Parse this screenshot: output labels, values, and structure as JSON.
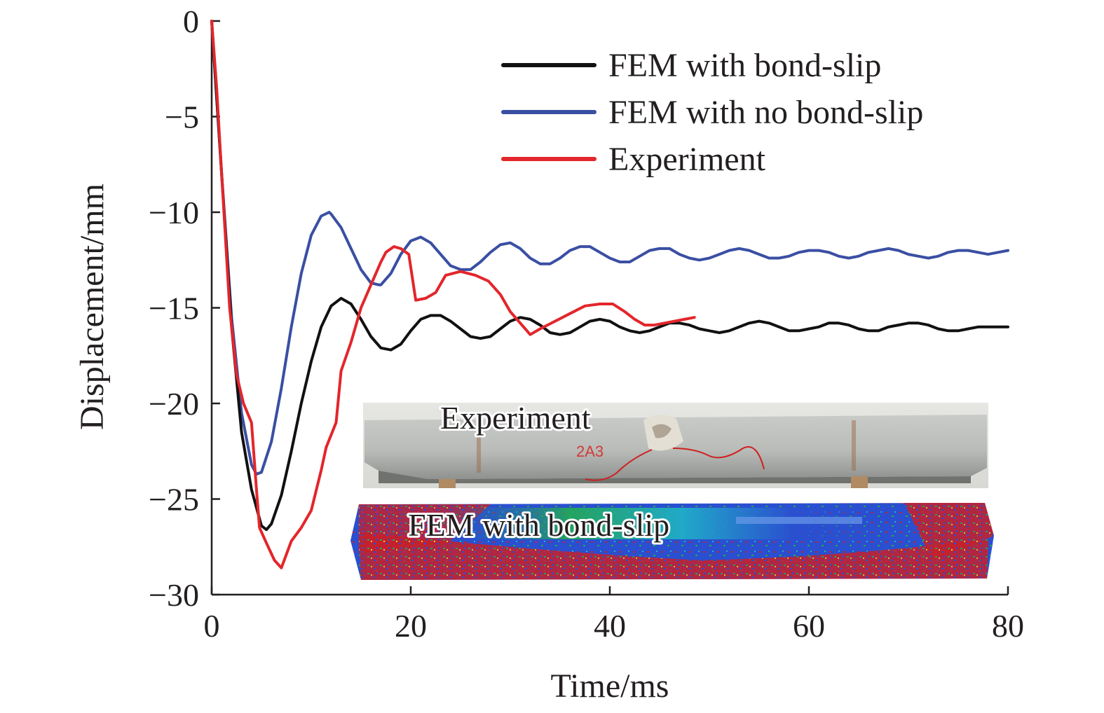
{
  "chart_data": {
    "type": "line",
    "title": "",
    "xlabel": "Time/ms",
    "ylabel": "Displacement/mm",
    "xlim": [
      0,
      80
    ],
    "ylim": [
      -30,
      0
    ],
    "xticks": [
      0,
      20,
      40,
      60,
      80
    ],
    "yticks": [
      0,
      -5,
      -10,
      -15,
      -20,
      -25,
      -30
    ],
    "xtick_labels": [
      "0",
      "20",
      "40",
      "60",
      "80"
    ],
    "ytick_labels": [
      "0",
      "−5",
      "−10",
      "−15",
      "−20",
      "−25",
      "−30"
    ],
    "grid": false,
    "legend": "top-right",
    "series": [
      {
        "name": "FEM with bond-slip",
        "color": "#111111",
        "x": [
          0,
          1,
          2,
          3,
          4,
          5,
          5.5,
          6,
          7,
          8,
          9,
          10,
          11,
          12,
          13,
          14,
          15,
          16,
          17,
          18,
          19,
          20,
          21,
          22,
          23,
          24,
          25,
          26,
          27,
          28,
          29,
          30,
          31,
          32,
          33,
          34,
          35,
          36,
          37,
          38,
          39,
          40,
          41,
          42,
          43,
          44,
          45,
          46,
          47,
          48,
          49,
          50,
          51,
          52,
          53,
          54,
          55,
          56,
          57,
          58,
          59,
          60,
          61,
          62,
          63,
          64,
          65,
          66,
          67,
          68,
          69,
          70,
          71,
          72,
          73,
          74,
          75,
          76,
          77,
          78,
          79,
          80
        ],
        "y": [
          0,
          -8,
          -16,
          -21.5,
          -24.5,
          -26.4,
          -26.6,
          -26.3,
          -24.8,
          -22.5,
          -20.0,
          -17.8,
          -16.0,
          -14.9,
          -14.5,
          -14.8,
          -15.6,
          -16.5,
          -17.1,
          -17.2,
          -16.9,
          -16.2,
          -15.6,
          -15.4,
          -15.4,
          -15.7,
          -16.1,
          -16.5,
          -16.6,
          -16.5,
          -16.1,
          -15.7,
          -15.5,
          -15.6,
          -15.9,
          -16.3,
          -16.4,
          -16.3,
          -16.0,
          -15.7,
          -15.6,
          -15.7,
          -16.0,
          -16.2,
          -16.3,
          -16.2,
          -16.0,
          -15.8,
          -15.8,
          -15.9,
          -16.1,
          -16.2,
          -16.3,
          -16.2,
          -16.0,
          -15.8,
          -15.7,
          -15.8,
          -16.0,
          -16.2,
          -16.2,
          -16.1,
          -16.0,
          -15.8,
          -15.8,
          -15.9,
          -16.1,
          -16.2,
          -16.2,
          -16.0,
          -15.9,
          -15.8,
          -15.8,
          -15.9,
          -16.1,
          -16.2,
          -16.2,
          -16.1,
          -16.0,
          -16.0,
          -16.0,
          -16.0
        ]
      },
      {
        "name": "FEM with no bond-slip",
        "color": "#3a4fa3",
        "x": [
          0,
          1,
          2,
          3,
          4,
          4.5,
          5,
          6,
          7,
          8,
          9,
          10,
          11,
          11.8,
          12,
          13,
          14,
          15,
          16,
          16.8,
          17,
          18,
          19,
          20,
          21,
          22,
          23,
          24,
          25,
          26,
          27,
          28,
          29,
          30,
          31,
          32,
          33,
          34,
          35,
          36,
          37,
          38,
          39,
          40,
          41,
          42,
          43,
          44,
          45,
          46,
          47,
          48,
          49,
          50,
          51,
          52,
          53,
          54,
          55,
          56,
          57,
          58,
          59,
          60,
          61,
          62,
          63,
          64,
          65,
          66,
          67,
          68,
          69,
          70,
          71,
          72,
          73,
          74,
          75,
          76,
          77,
          78,
          79,
          80
        ],
        "y": [
          0,
          -8,
          -15.5,
          -20.5,
          -23.2,
          -23.7,
          -23.6,
          -22.0,
          -19.2,
          -16.0,
          -13.2,
          -11.2,
          -10.2,
          -10.0,
          -10.1,
          -10.8,
          -11.9,
          -13.0,
          -13.7,
          -13.8,
          -13.8,
          -13.2,
          -12.2,
          -11.5,
          -11.3,
          -11.6,
          -12.2,
          -12.8,
          -13.0,
          -13.0,
          -12.6,
          -12.1,
          -11.7,
          -11.6,
          -11.9,
          -12.4,
          -12.7,
          -12.7,
          -12.4,
          -12.0,
          -11.8,
          -11.8,
          -12.1,
          -12.4,
          -12.6,
          -12.6,
          -12.3,
          -12.0,
          -11.9,
          -11.9,
          -12.2,
          -12.4,
          -12.5,
          -12.4,
          -12.2,
          -12.0,
          -11.9,
          -12.0,
          -12.2,
          -12.4,
          -12.4,
          -12.3,
          -12.1,
          -12.0,
          -12.0,
          -12.1,
          -12.3,
          -12.4,
          -12.3,
          -12.1,
          -12.0,
          -11.9,
          -12.0,
          -12.2,
          -12.3,
          -12.4,
          -12.3,
          -12.1,
          -12.0,
          -12.0,
          -12.1,
          -12.2,
          -12.1,
          -12.0
        ]
      },
      {
        "name": "Experiment",
        "color": "#e3262b",
        "x": [
          0,
          0.5,
          1,
          1.8,
          2.5,
          3.2,
          4,
          4.5,
          4.8,
          5.5,
          6.3,
          7,
          8,
          9,
          10,
          11,
          11.5,
          12.5,
          13,
          14,
          15,
          16,
          17,
          17.5,
          18.3,
          19,
          19.8,
          20.5,
          21.5,
          22.5,
          23.5,
          25,
          26.5,
          27.8,
          29,
          30,
          31,
          32,
          33,
          34.5,
          36,
          37.5,
          39,
          40.3,
          41.5,
          42.5,
          43.5,
          44.5,
          45.5,
          46.5,
          47.5,
          48.5
        ],
        "y": [
          0,
          -3.5,
          -8,
          -15,
          -18.5,
          -20,
          -21,
          -24.5,
          -26.5,
          -27.3,
          -28.2,
          -28.6,
          -27.2,
          -26.5,
          -25.6,
          -23.5,
          -22.3,
          -21.0,
          -18.3,
          -16.8,
          -15.0,
          -13.8,
          -12.6,
          -12.1,
          -11.8,
          -11.9,
          -12.2,
          -14.6,
          -14.5,
          -14.2,
          -13.3,
          -13.1,
          -13.3,
          -13.6,
          -14.3,
          -15.2,
          -15.8,
          -16.4,
          -16.1,
          -15.7,
          -15.3,
          -14.9,
          -14.8,
          -14.8,
          -15.2,
          -15.6,
          -15.9,
          -15.9,
          -15.8,
          -15.7,
          -15.6,
          -15.5
        ]
      }
    ],
    "insets": {
      "experiment_label": "Experiment",
      "specimen_mark": "2A3",
      "fem_label": "FEM with bond-slip"
    }
  }
}
